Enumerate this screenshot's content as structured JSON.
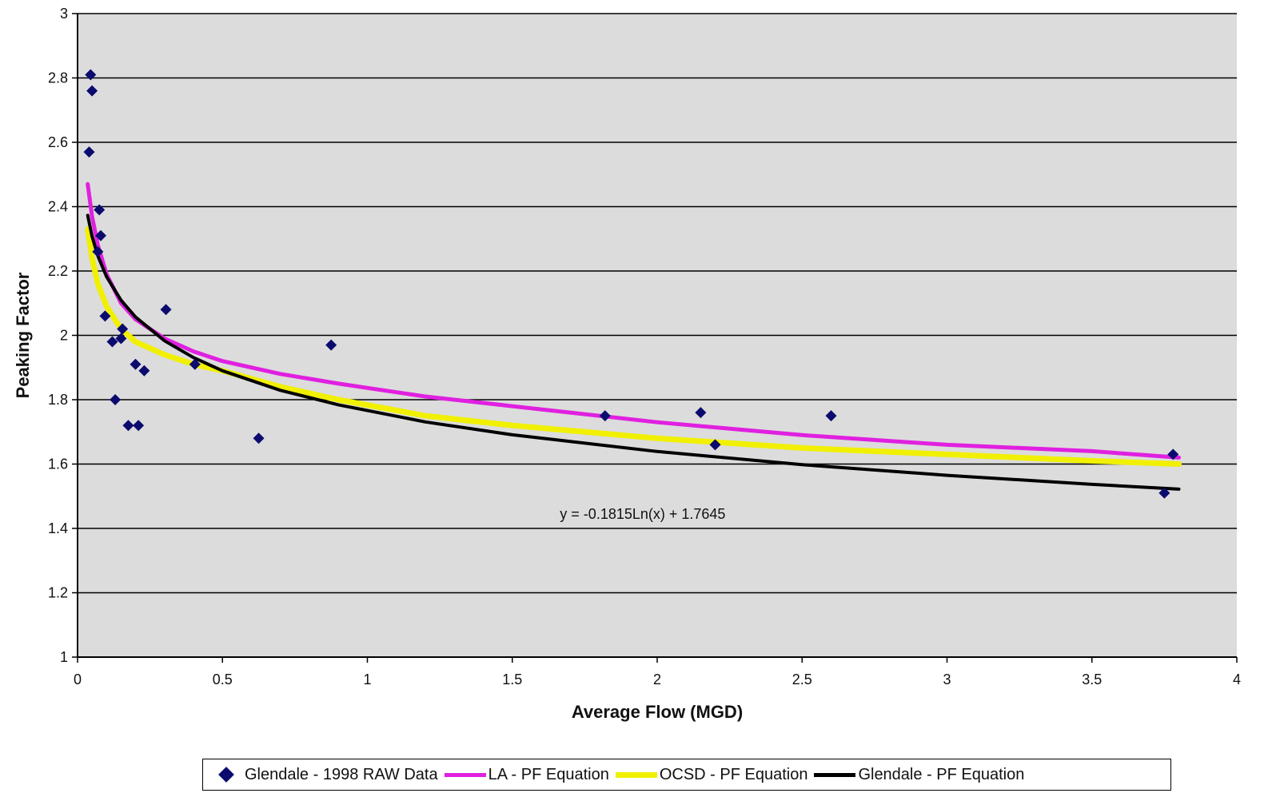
{
  "chart_data": {
    "type": "scatter",
    "title": "",
    "xlabel": "Average Flow (MGD)",
    "ylabel": "Peaking Factor",
    "xlim": [
      0,
      4
    ],
    "ylim": [
      1,
      3
    ],
    "xticks": [
      0,
      0.5,
      1,
      1.5,
      2,
      2.5,
      3,
      3.5,
      4
    ],
    "xtick_labels": [
      "0",
      "0.5",
      "1",
      "1.5",
      "2",
      "2.5",
      "3",
      "3.5",
      "4"
    ],
    "yticks": [
      1,
      1.2,
      1.4,
      1.6,
      1.8,
      2,
      2.2,
      2.4,
      2.6,
      2.8,
      3
    ],
    "ytick_labels": [
      "1",
      "1.2",
      "1.4",
      "1.6",
      "1.8",
      "2",
      "2.2",
      "2.4",
      "2.6",
      "2.8",
      "3"
    ],
    "grid": "horizontal",
    "plot_background": "#dcdcdc",
    "legend_position": "bottom",
    "series": [
      {
        "name": "Glendale - 1998 RAW Data",
        "kind": "scatter",
        "color": "#0b0b6e",
        "x": [
          0.04,
          0.045,
          0.05,
          0.075,
          0.08,
          0.07,
          0.095,
          0.12,
          0.13,
          0.15,
          0.155,
          0.175,
          0.2,
          0.21,
          0.23,
          0.305,
          0.405,
          0.625,
          0.875,
          1.82,
          2.15,
          2.2,
          2.6,
          3.78,
          3.75
        ],
        "y": [
          2.57,
          2.81,
          2.76,
          2.39,
          2.31,
          2.26,
          2.06,
          1.98,
          1.8,
          1.99,
          2.02,
          1.72,
          1.91,
          1.72,
          1.89,
          2.08,
          1.91,
          1.68,
          1.97,
          1.75,
          1.76,
          1.66,
          1.75,
          1.63,
          1.51
        ]
      },
      {
        "name": "LA - PF Equation",
        "kind": "line",
        "color": "#e020e0",
        "x": [
          0.035,
          0.05,
          0.07,
          0.1,
          0.15,
          0.2,
          0.3,
          0.4,
          0.5,
          0.7,
          0.9,
          1.2,
          1.5,
          2,
          2.5,
          3,
          3.5,
          3.8
        ],
        "y": [
          2.47,
          2.37,
          2.28,
          2.19,
          2.1,
          2.05,
          1.99,
          1.95,
          1.92,
          1.88,
          1.85,
          1.81,
          1.78,
          1.73,
          1.69,
          1.66,
          1.64,
          1.62
        ]
      },
      {
        "name": "OCSD - PF Equation",
        "kind": "line",
        "color": "#f0f000",
        "x": [
          0.035,
          0.05,
          0.07,
          0.1,
          0.15,
          0.2,
          0.3,
          0.4,
          0.5,
          0.7,
          0.9,
          1.2,
          1.5,
          2,
          2.5,
          3,
          3.5,
          3.8
        ],
        "y": [
          2.33,
          2.24,
          2.16,
          2.09,
          2.02,
          1.98,
          1.94,
          1.91,
          1.89,
          1.84,
          1.8,
          1.75,
          1.72,
          1.68,
          1.65,
          1.63,
          1.61,
          1.6
        ]
      },
      {
        "name": "Glendale - PF Equation",
        "kind": "line",
        "color": "#000000",
        "x": [
          0.035,
          0.05,
          0.07,
          0.1,
          0.15,
          0.2,
          0.3,
          0.4,
          0.5,
          0.7,
          0.9,
          1.2,
          1.5,
          2,
          2.5,
          3,
          3.5,
          3.8
        ],
        "y": [
          2.373,
          2.308,
          2.247,
          2.182,
          2.109,
          2.057,
          1.983,
          1.931,
          1.89,
          1.829,
          1.784,
          1.731,
          1.691,
          1.639,
          1.598,
          1.565,
          1.537,
          1.522
        ]
      }
    ],
    "annotations": [
      {
        "text": "y = -0.1815Ln(x) + 1.7645",
        "x": 1.95,
        "y": 1.43
      }
    ]
  }
}
